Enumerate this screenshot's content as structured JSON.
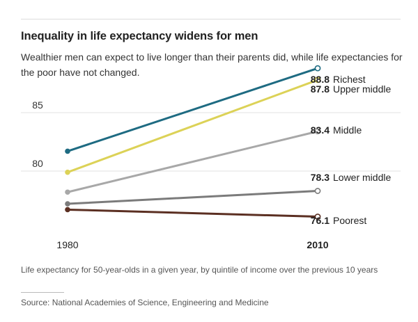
{
  "header": {
    "title": "Inequality in life expectancy widens for men",
    "subtitle": "Wealthier men can expect to live longer than their parents did, while life expectancies for the poor have not changed."
  },
  "footer": {
    "caption": "Life expectancy for 50-year-olds in a given year, by quintile of income over the previous 10 years",
    "source": "Source: National Academies of Science, Engineering and Medicine"
  },
  "chart_data": {
    "type": "line",
    "x": [
      "1980",
      "2010"
    ],
    "bold_x_label": "2010",
    "ylim": [
      75,
      89.5
    ],
    "yticks": [
      80,
      85
    ],
    "grid": true,
    "series": [
      {
        "name": "Richest",
        "values": [
          81.7,
          88.8
        ],
        "end_label": "88.8",
        "color": "#1e6b82"
      },
      {
        "name": "Upper middle",
        "values": [
          79.9,
          87.8
        ],
        "end_label": "87.8",
        "color": "#dcd257"
      },
      {
        "name": "Middle",
        "values": [
          78.2,
          83.4
        ],
        "end_label": "83.4",
        "color": "#a8a8a8"
      },
      {
        "name": "Lower middle",
        "values": [
          77.2,
          78.3
        ],
        "end_label": "78.3",
        "color": "#7b7b7b"
      },
      {
        "name": "Poorest",
        "values": [
          76.7,
          76.1
        ],
        "end_label": "76.1",
        "color": "#5b2f22"
      }
    ]
  }
}
